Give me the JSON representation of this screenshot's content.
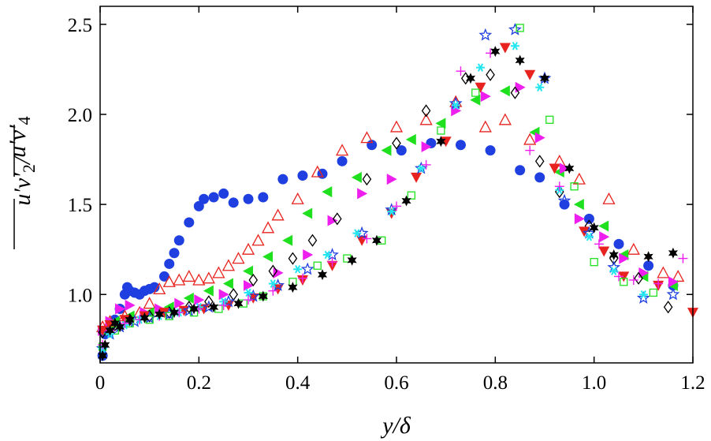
{
  "chart_data": {
    "type": "scatter",
    "xlabel": "y/δ",
    "ylabel_left": "u′v′",
    "ylabel_left_sub": "2",
    "ylabel_right": "u′v′",
    "ylabel_right_sub": "4",
    "ylabel_sep": "/",
    "xlim": [
      0,
      1.2
    ],
    "ylim": [
      0.62,
      2.6
    ],
    "x_ticks": [
      0,
      0.2,
      0.4,
      0.6,
      0.8,
      1.0,
      1.2
    ],
    "x_tick_labels": [
      "0",
      "0.2",
      "0.4",
      "0.6",
      "0.8",
      "1.0",
      "1.2"
    ],
    "y_ticks": [
      1.0,
      1.5,
      2.0,
      2.5
    ],
    "y_tick_labels": [
      "1.0",
      "1.5",
      "2.0",
      "2.5"
    ],
    "grid": false,
    "legend": "none",
    "series": [
      {
        "marker": "filled-circle",
        "color": "#1f3fe0",
        "points": [
          [
            0.005,
            0.66
          ],
          [
            0.01,
            0.78
          ],
          [
            0.02,
            0.82
          ],
          [
            0.03,
            0.86
          ],
          [
            0.04,
            0.92
          ],
          [
            0.05,
            1.0
          ],
          [
            0.055,
            1.04
          ],
          [
            0.06,
            1.02
          ],
          [
            0.07,
            1.01
          ],
          [
            0.08,
            1.0
          ],
          [
            0.09,
            1.02
          ],
          [
            0.1,
            1.03
          ],
          [
            0.11,
            1.04
          ],
          [
            0.13,
            1.1
          ],
          [
            0.14,
            1.17
          ],
          [
            0.15,
            1.23
          ],
          [
            0.16,
            1.3
          ],
          [
            0.18,
            1.4
          ],
          [
            0.2,
            1.49
          ],
          [
            0.21,
            1.53
          ],
          [
            0.23,
            1.54
          ],
          [
            0.25,
            1.56
          ],
          [
            0.27,
            1.51
          ],
          [
            0.3,
            1.53
          ],
          [
            0.33,
            1.54
          ],
          [
            0.37,
            1.64
          ],
          [
            0.41,
            1.66
          ],
          [
            0.45,
            1.67
          ],
          [
            0.49,
            1.74
          ],
          [
            0.55,
            1.83
          ],
          [
            0.61,
            1.8
          ],
          [
            0.67,
            1.84
          ],
          [
            0.73,
            1.83
          ],
          [
            0.79,
            1.8
          ],
          [
            0.85,
            1.69
          ],
          [
            0.89,
            1.65
          ],
          [
            0.94,
            1.5
          ],
          [
            0.99,
            1.42
          ],
          [
            1.05,
            1.28
          ],
          [
            1.11,
            1.16
          ],
          [
            1.16,
            1.05
          ]
        ]
      },
      {
        "marker": "open-triangle-up",
        "color": "#e8231f",
        "points": [
          [
            0.005,
            0.82
          ],
          [
            0.02,
            0.85
          ],
          [
            0.05,
            0.88
          ],
          [
            0.08,
            0.9
          ],
          [
            0.1,
            0.95
          ],
          [
            0.12,
            1.03
          ],
          [
            0.14,
            1.07
          ],
          [
            0.16,
            1.08
          ],
          [
            0.18,
            1.1
          ],
          [
            0.2,
            1.08
          ],
          [
            0.22,
            1.09
          ],
          [
            0.24,
            1.12
          ],
          [
            0.26,
            1.16
          ],
          [
            0.28,
            1.2
          ],
          [
            0.3,
            1.25
          ],
          [
            0.32,
            1.3
          ],
          [
            0.34,
            1.37
          ],
          [
            0.36,
            1.44
          ],
          [
            0.4,
            1.53
          ],
          [
            0.44,
            1.68
          ],
          [
            0.49,
            1.8
          ],
          [
            0.54,
            1.87
          ],
          [
            0.6,
            1.93
          ],
          [
            0.66,
            1.97
          ],
          [
            0.72,
            2.07
          ],
          [
            0.78,
            1.93
          ],
          [
            0.82,
            1.97
          ],
          [
            0.87,
            1.86
          ],
          [
            0.93,
            1.74
          ],
          [
            0.97,
            1.64
          ],
          [
            1.03,
            1.53
          ],
          [
            1.08,
            1.25
          ],
          [
            1.14,
            1.12
          ],
          [
            1.17,
            1.1
          ]
        ]
      },
      {
        "marker": "filled-triangle-left",
        "color": "#1fe01f",
        "points": [
          [
            0.005,
            0.8
          ],
          [
            0.03,
            0.85
          ],
          [
            0.06,
            0.88
          ],
          [
            0.1,
            0.9
          ],
          [
            0.14,
            0.93
          ],
          [
            0.18,
            0.98
          ],
          [
            0.22,
            1.02
          ],
          [
            0.26,
            1.06
          ],
          [
            0.3,
            1.13
          ],
          [
            0.34,
            1.21
          ],
          [
            0.38,
            1.3
          ],
          [
            0.42,
            1.45
          ],
          [
            0.46,
            1.57
          ],
          [
            0.52,
            1.65
          ],
          [
            0.58,
            1.8
          ],
          [
            0.63,
            1.86
          ],
          [
            0.69,
            1.95
          ],
          [
            0.76,
            2.08
          ],
          [
            0.82,
            2.13
          ],
          [
            0.88,
            1.9
          ],
          [
            0.93,
            1.68
          ],
          [
            0.97,
            1.5
          ],
          [
            1.02,
            1.38
          ],
          [
            1.06,
            1.22
          ],
          [
            1.1,
            1.1
          ],
          [
            1.16,
            1.05
          ]
        ]
      },
      {
        "marker": "filled-triangle-right",
        "color": "#ee1fee",
        "points": [
          [
            0.005,
            0.8
          ],
          [
            0.02,
            0.85
          ],
          [
            0.04,
            0.92
          ],
          [
            0.06,
            0.94
          ],
          [
            0.09,
            0.9
          ],
          [
            0.12,
            0.92
          ],
          [
            0.16,
            0.95
          ],
          [
            0.2,
            0.97
          ],
          [
            0.25,
            1.0
          ],
          [
            0.3,
            1.05
          ],
          [
            0.36,
            1.12
          ],
          [
            0.42,
            1.22
          ],
          [
            0.47,
            1.41
          ],
          [
            0.53,
            1.56
          ],
          [
            0.59,
            1.64
          ],
          [
            0.66,
            1.82
          ],
          [
            0.72,
            2.02
          ],
          [
            0.78,
            2.1
          ],
          [
            0.85,
            2.15
          ],
          [
            0.89,
            1.87
          ],
          [
            0.94,
            1.7
          ],
          [
            0.97,
            1.42
          ],
          [
            1.02,
            1.32
          ],
          [
            1.06,
            1.2
          ],
          [
            1.1,
            1.12
          ],
          [
            1.16,
            1.07
          ]
        ]
      },
      {
        "marker": "open-diamond",
        "color": "#000000",
        "points": [
          [
            0.005,
            0.79
          ],
          [
            0.03,
            0.83
          ],
          [
            0.06,
            0.86
          ],
          [
            0.1,
            0.88
          ],
          [
            0.14,
            0.9
          ],
          [
            0.18,
            0.93
          ],
          [
            0.22,
            0.96
          ],
          [
            0.27,
            1.0
          ],
          [
            0.31,
            1.08
          ],
          [
            0.35,
            1.13
          ],
          [
            0.39,
            1.2
          ],
          [
            0.43,
            1.3
          ],
          [
            0.48,
            1.42
          ],
          [
            0.54,
            1.64
          ],
          [
            0.6,
            1.84
          ],
          [
            0.66,
            2.02
          ],
          [
            0.74,
            2.2
          ],
          [
            0.79,
            2.22
          ],
          [
            0.84,
            2.12
          ],
          [
            0.89,
            1.74
          ],
          [
            0.93,
            1.57
          ],
          [
            0.99,
            1.38
          ],
          [
            1.04,
            1.2
          ],
          [
            1.09,
            1.09
          ],
          [
            1.15,
            0.93
          ]
        ]
      },
      {
        "marker": "filled-triangle-down",
        "color": "#e8231f",
        "points": [
          [
            0.005,
            0.8
          ],
          [
            0.02,
            0.83
          ],
          [
            0.05,
            0.86
          ],
          [
            0.09,
            0.88
          ],
          [
            0.13,
            0.9
          ],
          [
            0.17,
            0.91
          ],
          [
            0.21,
            0.92
          ],
          [
            0.26,
            0.94
          ],
          [
            0.31,
            0.98
          ],
          [
            0.36,
            1.03
          ],
          [
            0.41,
            1.08
          ],
          [
            0.47,
            1.16
          ],
          [
            0.53,
            1.3
          ],
          [
            0.59,
            1.45
          ],
          [
            0.64,
            1.65
          ],
          [
            0.7,
            1.85
          ],
          [
            0.77,
            2.15
          ],
          [
            0.82,
            2.37
          ],
          [
            0.87,
            2.22
          ],
          [
            0.92,
            1.7
          ],
          [
            0.98,
            1.35
          ],
          [
            1.02,
            1.24
          ],
          [
            1.06,
            1.1
          ],
          [
            1.13,
            1.05
          ],
          [
            1.2,
            0.9
          ]
        ]
      },
      {
        "marker": "open-star",
        "color": "#1f3fe0",
        "points": [
          [
            0.005,
            0.7
          ],
          [
            0.02,
            0.78
          ],
          [
            0.04,
            0.82
          ],
          [
            0.07,
            0.85
          ],
          [
            0.1,
            0.87
          ],
          [
            0.14,
            0.89
          ],
          [
            0.18,
            0.91
          ],
          [
            0.22,
            0.93
          ],
          [
            0.26,
            0.96
          ],
          [
            0.31,
            0.99
          ],
          [
            0.36,
            1.05
          ],
          [
            0.42,
            1.14
          ],
          [
            0.47,
            1.22
          ],
          [
            0.53,
            1.34
          ],
          [
            0.59,
            1.47
          ],
          [
            0.65,
            1.7
          ],
          [
            0.72,
            2.06
          ],
          [
            0.78,
            2.44
          ],
          [
            0.84,
            2.47
          ],
          [
            0.9,
            2.2
          ],
          [
            0.94,
            1.52
          ],
          [
            0.99,
            1.34
          ],
          [
            1.04,
            1.15
          ],
          [
            1.1,
            0.98
          ],
          [
            1.16,
            1.0
          ]
        ]
      },
      {
        "marker": "open-square",
        "color": "#1fe01f",
        "points": [
          [
            0.005,
            0.71
          ],
          [
            0.03,
            0.8
          ],
          [
            0.06,
            0.84
          ],
          [
            0.1,
            0.86
          ],
          [
            0.14,
            0.88
          ],
          [
            0.19,
            0.9
          ],
          [
            0.24,
            0.92
          ],
          [
            0.29,
            0.95
          ],
          [
            0.33,
            0.99
          ],
          [
            0.39,
            1.07
          ],
          [
            0.44,
            1.16
          ],
          [
            0.5,
            1.2
          ],
          [
            0.57,
            1.3
          ],
          [
            0.63,
            1.55
          ],
          [
            0.69,
            1.91
          ],
          [
            0.76,
            2.12
          ],
          [
            0.85,
            2.48
          ],
          [
            0.91,
            1.97
          ],
          [
            0.96,
            1.6
          ],
          [
            1.0,
            1.18
          ],
          [
            1.06,
            1.07
          ],
          [
            1.12,
            1.01
          ]
        ]
      },
      {
        "marker": "asterisk",
        "color": "#22e6f0",
        "points": [
          [
            0.005,
            0.7
          ],
          [
            0.02,
            0.78
          ],
          [
            0.05,
            0.83
          ],
          [
            0.08,
            0.86
          ],
          [
            0.12,
            0.88
          ],
          [
            0.16,
            0.9
          ],
          [
            0.2,
            0.93
          ],
          [
            0.25,
            0.96
          ],
          [
            0.3,
            1.01
          ],
          [
            0.35,
            1.06
          ],
          [
            0.4,
            1.14
          ],
          [
            0.46,
            1.22
          ],
          [
            0.52,
            1.34
          ],
          [
            0.59,
            1.46
          ],
          [
            0.65,
            1.7
          ],
          [
            0.72,
            2.05
          ],
          [
            0.77,
            2.26
          ],
          [
            0.84,
            2.38
          ],
          [
            0.89,
            2.15
          ],
          [
            0.93,
            1.58
          ],
          [
            0.99,
            1.32
          ],
          [
            1.04,
            1.13
          ],
          [
            1.1,
            1.0
          ]
        ]
      },
      {
        "marker": "plus",
        "color": "#ee1fee",
        "points": [
          [
            0.005,
            0.72
          ],
          [
            0.02,
            0.8
          ],
          [
            0.05,
            0.84
          ],
          [
            0.08,
            0.86
          ],
          [
            0.12,
            0.88
          ],
          [
            0.16,
            0.9
          ],
          [
            0.2,
            0.92
          ],
          [
            0.25,
            0.94
          ],
          [
            0.3,
            0.97
          ],
          [
            0.35,
            1.02
          ],
          [
            0.41,
            1.09
          ],
          [
            0.47,
            1.18
          ],
          [
            0.54,
            1.31
          ],
          [
            0.6,
            1.49
          ],
          [
            0.66,
            1.72
          ],
          [
            0.73,
            2.24
          ],
          [
            0.79,
            2.34
          ],
          [
            0.87,
            1.8
          ],
          [
            0.93,
            1.6
          ],
          [
            1.01,
            1.28
          ],
          [
            1.05,
            1.1
          ],
          [
            1.08,
            1.08
          ],
          [
            1.13,
            1.06
          ],
          [
            1.18,
            1.2
          ]
        ]
      },
      {
        "marker": "filled-star",
        "color": "#000000",
        "points": [
          [
            0.005,
            0.66
          ],
          [
            0.01,
            0.72
          ],
          [
            0.02,
            0.8
          ],
          [
            0.03,
            0.84
          ],
          [
            0.04,
            0.82
          ],
          [
            0.06,
            0.86
          ],
          [
            0.09,
            0.87
          ],
          [
            0.12,
            0.89
          ],
          [
            0.15,
            0.9
          ],
          [
            0.19,
            0.92
          ],
          [
            0.23,
            0.93
          ],
          [
            0.28,
            0.95
          ],
          [
            0.33,
            0.99
          ],
          [
            0.39,
            1.04
          ],
          [
            0.45,
            1.11
          ],
          [
            0.51,
            1.19
          ],
          [
            0.56,
            1.3
          ],
          [
            0.62,
            1.52
          ],
          [
            0.69,
            1.85
          ],
          [
            0.75,
            2.2
          ],
          [
            0.8,
            2.35
          ],
          [
            0.85,
            2.3
          ],
          [
            0.9,
            2.2
          ],
          [
            0.95,
            1.7
          ],
          [
            1.0,
            1.37
          ],
          [
            1.04,
            1.22
          ],
          [
            1.11,
            1.21
          ],
          [
            1.16,
            1.23
          ]
        ]
      }
    ]
  }
}
